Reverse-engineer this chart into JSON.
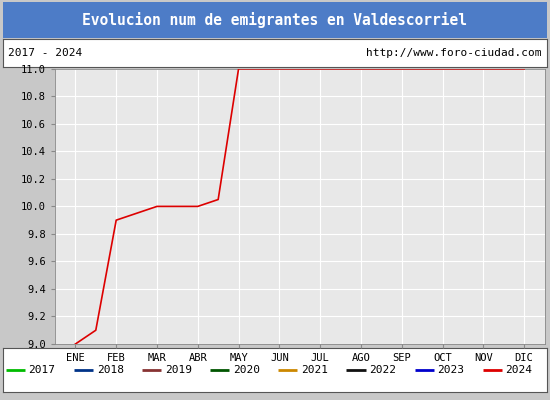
{
  "title": "Evolucion num de emigrantes en Valdescorriel",
  "title_bg_color": "#4d7cc7",
  "title_text_color": "white",
  "subtitle_left": "2017 - 2024",
  "subtitle_right": "http://www.foro-ciudad.com",
  "x_labels": [
    "ENE",
    "FEB",
    "MAR",
    "ABR",
    "MAY",
    "JUN",
    "JUL",
    "AGO",
    "SEP",
    "OCT",
    "NOV",
    "DIC"
  ],
  "ylim": [
    9.0,
    11.0
  ],
  "yticks": [
    9.0,
    9.2,
    9.4,
    9.6,
    9.8,
    10.0,
    10.2,
    10.4,
    10.6,
    10.8,
    11.0
  ],
  "bg_color": "#d8d8d8",
  "plot_bg_color": "#e8e8e8",
  "outer_bg_color": "#c8c8c8",
  "grid_color": "white",
  "series_2024": {
    "x": [
      0,
      0.5,
      1,
      2,
      3,
      3.5,
      4,
      5,
      6,
      7,
      8,
      9,
      10,
      11
    ],
    "y": [
      9.0,
      9.1,
      9.9,
      10.0,
      10.0,
      10.05,
      11.0,
      11.0,
      11.0,
      11.0,
      11.0,
      11.0,
      11.0,
      11.0
    ],
    "color": "#dd0000",
    "linewidth": 1.2
  },
  "legend_entries": [
    {
      "label": "2017",
      "color": "#00bb00"
    },
    {
      "label": "2018",
      "color": "#003388"
    },
    {
      "label": "2019",
      "color": "#883333"
    },
    {
      "label": "2020",
      "color": "#005500"
    },
    {
      "label": "2021",
      "color": "#cc8800"
    },
    {
      "label": "2022",
      "color": "#111111"
    },
    {
      "label": "2023",
      "color": "#0000cc"
    },
    {
      "label": "2024",
      "color": "#dd0000"
    }
  ]
}
